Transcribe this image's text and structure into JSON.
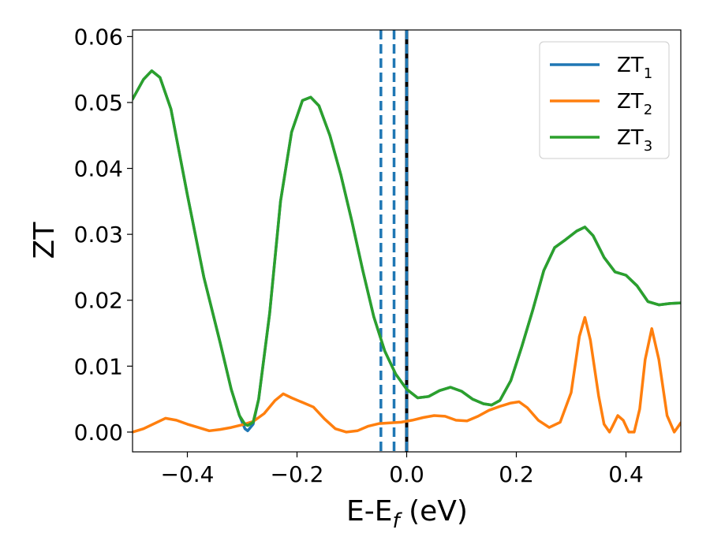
{
  "chart_data": {
    "type": "line",
    "xlabel": {
      "base": "E-E",
      "sub": "f",
      "unit": " (eV)"
    },
    "ylabel": "ZT",
    "xlim": [
      -0.5,
      0.5
    ],
    "ylim": [
      -0.003,
      0.061
    ],
    "x_ticks": [
      -0.4,
      -0.2,
      0.0,
      0.2,
      0.4
    ],
    "x_tick_labels": [
      "−0.4",
      "−0.2",
      "0.0",
      "0.2",
      "0.4"
    ],
    "y_ticks": [
      0.0,
      0.01,
      0.02,
      0.03,
      0.04,
      0.05,
      0.06
    ],
    "y_tick_labels": [
      "0.00",
      "0.01",
      "0.02",
      "0.03",
      "0.04",
      "0.05",
      "0.06"
    ],
    "grid": false,
    "legend_position": "top-right",
    "vertical_lines": [
      {
        "x": -0.047,
        "style": "dashed",
        "color": "#1f77b4"
      },
      {
        "x": -0.023,
        "style": "dashed",
        "color": "#1f77b4"
      },
      {
        "x": 0.0,
        "style": "solid",
        "color": "#000000"
      },
      {
        "x": 0.0,
        "style": "dashed",
        "color": "#1f77b4"
      }
    ],
    "series": [
      {
        "name": "ZT",
        "sub": "1",
        "color": "#1f77b4",
        "points": [
          [
            -0.5,
            0.0505
          ],
          [
            -0.48,
            0.0535
          ],
          [
            -0.465,
            0.0548
          ],
          [
            -0.45,
            0.0538
          ],
          [
            -0.43,
            0.049
          ],
          [
            -0.4,
            0.036
          ],
          [
            -0.37,
            0.0235
          ],
          [
            -0.34,
            0.0135
          ],
          [
            -0.32,
            0.0065
          ],
          [
            -0.305,
            0.0025
          ],
          [
            -0.295,
            0.0005
          ],
          [
            -0.29,
            0.0002
          ],
          [
            -0.28,
            0.0012
          ],
          [
            -0.27,
            0.005
          ],
          [
            -0.25,
            0.018
          ],
          [
            -0.23,
            0.035
          ],
          [
            -0.21,
            0.0455
          ],
          [
            -0.19,
            0.0503
          ],
          [
            -0.175,
            0.0508
          ],
          [
            -0.16,
            0.0495
          ],
          [
            -0.14,
            0.045
          ],
          [
            -0.12,
            0.039
          ],
          [
            -0.1,
            0.032
          ],
          [
            -0.08,
            0.0245
          ],
          [
            -0.06,
            0.0175
          ],
          [
            -0.04,
            0.0123
          ],
          [
            -0.02,
            0.0088
          ],
          [
            0.0,
            0.0065
          ],
          [
            0.02,
            0.0052
          ],
          [
            0.04,
            0.0054
          ],
          [
            0.06,
            0.0063
          ],
          [
            0.08,
            0.0068
          ],
          [
            0.1,
            0.0062
          ],
          [
            0.12,
            0.005
          ],
          [
            0.14,
            0.0043
          ],
          [
            0.155,
            0.0041
          ],
          [
            0.17,
            0.0048
          ],
          [
            0.19,
            0.0078
          ],
          [
            0.21,
            0.013
          ],
          [
            0.23,
            0.0185
          ],
          [
            0.25,
            0.0245
          ],
          [
            0.27,
            0.028
          ],
          [
            0.29,
            0.0292
          ],
          [
            0.31,
            0.0305
          ],
          [
            0.325,
            0.0311
          ],
          [
            0.34,
            0.0298
          ],
          [
            0.36,
            0.0265
          ],
          [
            0.38,
            0.0243
          ],
          [
            0.4,
            0.0238
          ],
          [
            0.42,
            0.0222
          ],
          [
            0.44,
            0.0198
          ],
          [
            0.46,
            0.0193
          ],
          [
            0.48,
            0.0195
          ],
          [
            0.5,
            0.0196
          ]
        ]
      },
      {
        "name": "ZT",
        "sub": "2",
        "color": "#ff7f0e",
        "points": [
          [
            -0.5,
            0.0
          ],
          [
            -0.48,
            0.0005
          ],
          [
            -0.46,
            0.0013
          ],
          [
            -0.44,
            0.0021
          ],
          [
            -0.42,
            0.0018
          ],
          [
            -0.4,
            0.0012
          ],
          [
            -0.38,
            0.0007
          ],
          [
            -0.36,
            0.0002
          ],
          [
            -0.34,
            0.0004
          ],
          [
            -0.32,
            0.0007
          ],
          [
            -0.3,
            0.0011
          ],
          [
            -0.28,
            0.0016
          ],
          [
            -0.26,
            0.0028
          ],
          [
            -0.24,
            0.0048
          ],
          [
            -0.225,
            0.0058
          ],
          [
            -0.21,
            0.0052
          ],
          [
            -0.19,
            0.0045
          ],
          [
            -0.17,
            0.0038
          ],
          [
            -0.15,
            0.002
          ],
          [
            -0.13,
            0.0005
          ],
          [
            -0.11,
            0.0
          ],
          [
            -0.09,
            0.0002
          ],
          [
            -0.07,
            0.0009
          ],
          [
            -0.05,
            0.0013
          ],
          [
            -0.03,
            0.0014
          ],
          [
            -0.01,
            0.0015
          ],
          [
            0.01,
            0.0018
          ],
          [
            0.03,
            0.0022
          ],
          [
            0.05,
            0.0025
          ],
          [
            0.07,
            0.0024
          ],
          [
            0.09,
            0.0018
          ],
          [
            0.11,
            0.0017
          ],
          [
            0.13,
            0.0024
          ],
          [
            0.15,
            0.0033
          ],
          [
            0.17,
            0.0039
          ],
          [
            0.19,
            0.0044
          ],
          [
            0.205,
            0.0046
          ],
          [
            0.22,
            0.0037
          ],
          [
            0.24,
            0.0018
          ],
          [
            0.26,
            0.0007
          ],
          [
            0.28,
            0.0015
          ],
          [
            0.3,
            0.006
          ],
          [
            0.315,
            0.0145
          ],
          [
            0.325,
            0.0174
          ],
          [
            0.335,
            0.014
          ],
          [
            0.35,
            0.0055
          ],
          [
            0.36,
            0.0012
          ],
          [
            0.37,
            0.0
          ],
          [
            0.375,
            0.0008
          ],
          [
            0.385,
            0.0025
          ],
          [
            0.395,
            0.0018
          ],
          [
            0.405,
            0.0
          ],
          [
            0.415,
            0.0
          ],
          [
            0.425,
            0.0035
          ],
          [
            0.435,
            0.011
          ],
          [
            0.447,
            0.0157
          ],
          [
            0.46,
            0.011
          ],
          [
            0.475,
            0.0025
          ],
          [
            0.488,
            0.0
          ],
          [
            0.5,
            0.0014
          ]
        ]
      },
      {
        "name": "ZT",
        "sub": "3",
        "color": "#2ca02c",
        "points": [
          [
            -0.5,
            0.0505
          ],
          [
            -0.48,
            0.0535
          ],
          [
            -0.465,
            0.0548
          ],
          [
            -0.45,
            0.0538
          ],
          [
            -0.43,
            0.049
          ],
          [
            -0.4,
            0.036
          ],
          [
            -0.37,
            0.0235
          ],
          [
            -0.34,
            0.0135
          ],
          [
            -0.32,
            0.0065
          ],
          [
            -0.305,
            0.0025
          ],
          [
            -0.295,
            0.0012
          ],
          [
            -0.29,
            0.001
          ],
          [
            -0.28,
            0.0015
          ],
          [
            -0.27,
            0.005
          ],
          [
            -0.25,
            0.018
          ],
          [
            -0.23,
            0.035
          ],
          [
            -0.21,
            0.0455
          ],
          [
            -0.19,
            0.0503
          ],
          [
            -0.175,
            0.0508
          ],
          [
            -0.16,
            0.0495
          ],
          [
            -0.14,
            0.045
          ],
          [
            -0.12,
            0.039
          ],
          [
            -0.1,
            0.032
          ],
          [
            -0.08,
            0.0245
          ],
          [
            -0.06,
            0.0175
          ],
          [
            -0.04,
            0.0123
          ],
          [
            -0.02,
            0.0088
          ],
          [
            0.0,
            0.0065
          ],
          [
            0.02,
            0.0052
          ],
          [
            0.04,
            0.0054
          ],
          [
            0.06,
            0.0063
          ],
          [
            0.08,
            0.0068
          ],
          [
            0.1,
            0.0062
          ],
          [
            0.12,
            0.005
          ],
          [
            0.14,
            0.0043
          ],
          [
            0.155,
            0.0041
          ],
          [
            0.17,
            0.0048
          ],
          [
            0.19,
            0.0078
          ],
          [
            0.21,
            0.013
          ],
          [
            0.23,
            0.0185
          ],
          [
            0.25,
            0.0245
          ],
          [
            0.27,
            0.028
          ],
          [
            0.29,
            0.0292
          ],
          [
            0.31,
            0.0305
          ],
          [
            0.325,
            0.0311
          ],
          [
            0.34,
            0.0298
          ],
          [
            0.36,
            0.0265
          ],
          [
            0.38,
            0.0243
          ],
          [
            0.4,
            0.0238
          ],
          [
            0.42,
            0.0222
          ],
          [
            0.44,
            0.0198
          ],
          [
            0.46,
            0.0193
          ],
          [
            0.48,
            0.0195
          ],
          [
            0.5,
            0.0196
          ]
        ]
      }
    ]
  }
}
